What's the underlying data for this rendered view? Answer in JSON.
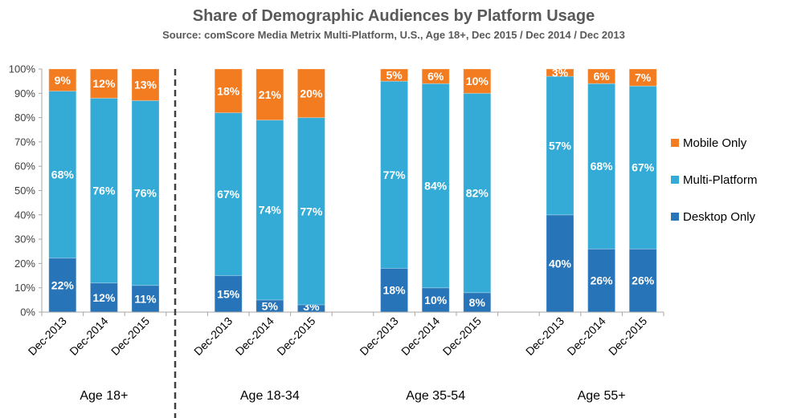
{
  "chart_data": {
    "type": "bar",
    "stacked": true,
    "title": "Share of Demographic Audiences by Platform Usage",
    "subtitle": "Source: comScore Media Metrix Multi-Platform, U.S., Age 18+, Dec 2015 / Dec 2014 / Dec 2013",
    "ylim": [
      0,
      100
    ],
    "yticks": [
      "0%",
      "10%",
      "20%",
      "30%",
      "40%",
      "50%",
      "60%",
      "70%",
      "80%",
      "90%",
      "100%"
    ],
    "groups": [
      {
        "name": "Age 18+",
        "categories": [
          "Dec-2013",
          "Dec-2014",
          "Dec-2015"
        ]
      },
      {
        "name": "Age 18-34",
        "categories": [
          "Dec-2013",
          "Dec-2014",
          "Dec-2015"
        ]
      },
      {
        "name": "Age 35-54",
        "categories": [
          "Dec-2013",
          "Dec-2014",
          "Dec-2015"
        ]
      },
      {
        "name": "Age 55+",
        "categories": [
          "Dec-2013",
          "Dec-2014",
          "Dec-2015"
        ]
      }
    ],
    "series": [
      {
        "name": "Desktop Only",
        "color": "#2874b8",
        "values": [
          22,
          12,
          11,
          15,
          5,
          3,
          18,
          10,
          8,
          40,
          26,
          26
        ]
      },
      {
        "name": "Multi-Platform",
        "color": "#33abd6",
        "values": [
          68,
          76,
          76,
          67,
          74,
          77,
          77,
          84,
          82,
          57,
          68,
          67
        ]
      },
      {
        "name": "Mobile Only",
        "color": "#f47c20",
        "values": [
          9,
          12,
          13,
          18,
          21,
          20,
          5,
          6,
          10,
          3,
          6,
          7
        ]
      }
    ],
    "legend": [
      "Mobile Only",
      "Multi-Platform",
      "Desktop Only"
    ],
    "legend_position": "right"
  }
}
